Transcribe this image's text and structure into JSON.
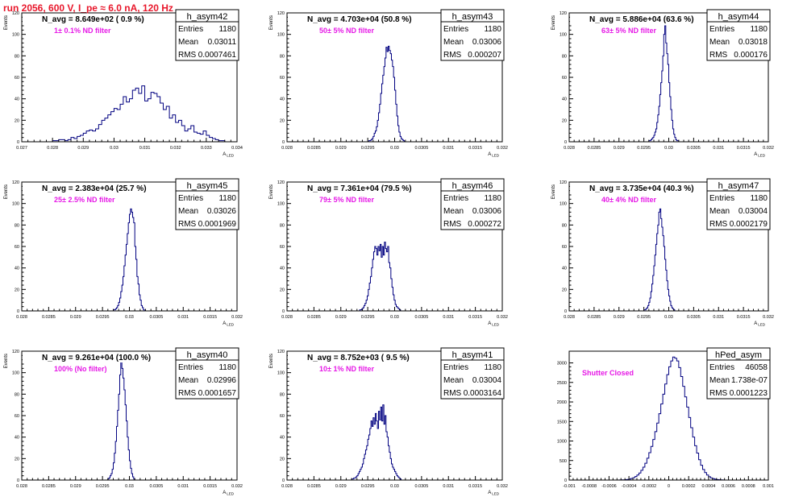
{
  "run_title": "run 2056,   600 V, I_pe ≈ 6.0 nA, 120 Hz",
  "colors": {
    "histogram": "#000080",
    "annotation": "#e619e6",
    "title": "#e8162a",
    "frame": "#000000"
  },
  "chart_data": [
    {
      "type": "histogram",
      "name": "h_asym42",
      "stats": {
        "Entries": "1180",
        "Mean": "0.03011",
        "RMS": "0.0007461"
      },
      "navg": "N_avg = 8.649e+02 ( 0.9 %)",
      "annotation": "1± 0.1% ND filter",
      "ylabel": "Events",
      "xlabel": "A_LED",
      "xlim": [
        0.027,
        0.034
      ],
      "ylim": [
        0,
        120
      ],
      "xticks": [
        "0.027",
        "0.028",
        "0.029",
        "0.03",
        "0.031",
        "0.032",
        "0.033",
        "0.034"
      ],
      "yticks": [
        "0",
        "20",
        "40",
        "60",
        "80",
        "100",
        "120"
      ],
      "bins": {
        "start": 0.028,
        "width": 0.0001,
        "counts": [
          1,
          1,
          2,
          2,
          1,
          2,
          4,
          3,
          5,
          6,
          8,
          10,
          11,
          10,
          12,
          16,
          20,
          22,
          25,
          28,
          31,
          30,
          35,
          42,
          37,
          40,
          48,
          50,
          45,
          52,
          38,
          40,
          46,
          45,
          42,
          36,
          30,
          33,
          22,
          25,
          18,
          20,
          15,
          10,
          12,
          15,
          9,
          8,
          7,
          10,
          6,
          4,
          3,
          2,
          1,
          1
        ]
      }
    },
    {
      "type": "histogram",
      "name": "h_asym43",
      "stats": {
        "Entries": "1180",
        "Mean": "0.03006",
        "RMS": "0.000207"
      },
      "navg": "N_avg = 4.703e+04 (50.8 %)",
      "annotation": "50± 5% ND filter",
      "ylabel": "Events",
      "xlabel": "A_LED",
      "xlim": [
        0.028,
        0.032
      ],
      "ylim": [
        0,
        120
      ],
      "xticks": [
        "0.028",
        "0.0285",
        "0.029",
        "0.0295",
        "0.03",
        "0.0305",
        "0.031",
        "0.0315",
        "0.032"
      ],
      "yticks": [
        "0",
        "20",
        "40",
        "60",
        "80",
        "100",
        "120"
      ],
      "bins": {
        "start": 0.0295,
        "width": 2e-05,
        "counts": [
          0,
          1,
          1,
          2,
          3,
          5,
          8,
          10,
          14,
          20,
          27,
          35,
          45,
          54,
          62,
          70,
          78,
          88,
          84,
          89,
          85,
          82,
          76,
          70,
          60,
          48,
          35,
          24,
          15,
          9,
          5,
          3,
          2,
          1
        ]
      }
    },
    {
      "type": "histogram",
      "name": "h_asym44",
      "stats": {
        "Entries": "1180",
        "Mean": "0.03018",
        "RMS": "0.000176"
      },
      "navg": "N_avg = 5.886e+04 (63.6 %)",
      "annotation": "63± 5% ND filter",
      "ylabel": "Events",
      "xlabel": "A_LED",
      "xlim": [
        0.028,
        0.032
      ],
      "ylim": [
        0,
        120
      ],
      "xticks": [
        "0.028",
        "0.0285",
        "0.029",
        "0.0295",
        "0.03",
        "0.0305",
        "0.031",
        "0.0315",
        "0.032"
      ],
      "yticks": [
        "0",
        "20",
        "40",
        "60",
        "80",
        "100",
        "120"
      ],
      "bins": {
        "start": 0.0296,
        "width": 2e-05,
        "counts": [
          1,
          1,
          2,
          3,
          4,
          6,
          9,
          12,
          18,
          25,
          33,
          44,
          55,
          66,
          80,
          100,
          108,
          92,
          82,
          72,
          55,
          42,
          30,
          20,
          12,
          7,
          4,
          2,
          1,
          1
        ]
      }
    },
    {
      "type": "histogram",
      "name": "h_asym45",
      "stats": {
        "Entries": "1180",
        "Mean": "0.03026",
        "RMS": "0.0001969"
      },
      "navg": "N_avg = 2.383e+04 (25.7 %)",
      "annotation": "25± 2.5% ND filter",
      "ylabel": "Events",
      "xlabel": "A_LED",
      "xlim": [
        0.028,
        0.032
      ],
      "ylim": [
        0,
        120
      ],
      "xticks": [
        "0.028",
        "0.0285",
        "0.029",
        "0.0295",
        "0.03",
        "0.0305",
        "0.031",
        "0.0315",
        "0.032"
      ],
      "yticks": [
        "0",
        "20",
        "40",
        "60",
        "80",
        "100",
        "120"
      ],
      "bins": {
        "start": 0.0297,
        "width": 2e-05,
        "counts": [
          1,
          1,
          2,
          3,
          5,
          8,
          12,
          18,
          24,
          32,
          42,
          52,
          62,
          72,
          82,
          90,
          95,
          92,
          87,
          82,
          60,
          48,
          32,
          25,
          15,
          10,
          5,
          3,
          1
        ]
      }
    },
    {
      "type": "histogram",
      "name": "h_asym46",
      "stats": {
        "Entries": "1180",
        "Mean": "0.03006",
        "RMS": "0.000272"
      },
      "navg": "N_avg = 7.361e+04 (79.5 %)",
      "annotation": "79± 5% ND filter",
      "ylabel": "Events",
      "xlabel": "A_LED",
      "xlim": [
        0.028,
        0.032
      ],
      "ylim": [
        0,
        120
      ],
      "xticks": [
        "0.028",
        "0.0285",
        "0.029",
        "0.0295",
        "0.03",
        "0.0305",
        "0.031",
        "0.0315",
        "0.032"
      ],
      "yticks": [
        "0",
        "20",
        "40",
        "60",
        "80",
        "100",
        "120"
      ],
      "bins": {
        "start": 0.02935,
        "width": 2e-05,
        "counts": [
          1,
          1,
          2,
          3,
          5,
          7,
          10,
          14,
          20,
          26,
          32,
          40,
          48,
          55,
          60,
          58,
          52,
          60,
          56,
          62,
          50,
          60,
          52,
          64,
          58,
          55,
          60,
          45,
          40,
          30,
          22,
          15,
          10,
          6,
          4,
          3,
          2,
          1
        ]
      }
    },
    {
      "type": "histogram",
      "name": "h_asym47",
      "stats": {
        "Entries": "1180",
        "Mean": "0.03004",
        "RMS": "0.0002179"
      },
      "navg": "N_avg = 3.735e+04 (40.3 %)",
      "annotation": "40± 4% ND filter",
      "ylabel": "Events",
      "xlabel": "A_LED",
      "xlim": [
        0.028,
        0.032
      ],
      "ylim": [
        0,
        120
      ],
      "xticks": [
        "0.028",
        "0.0285",
        "0.029",
        "0.0295",
        "0.03",
        "0.0305",
        "0.031",
        "0.0315",
        "0.032"
      ],
      "yticks": [
        "0",
        "20",
        "40",
        "60",
        "80",
        "100",
        "120"
      ],
      "bins": {
        "start": 0.0295,
        "width": 2e-05,
        "counts": [
          1,
          1,
          2,
          3,
          5,
          8,
          12,
          18,
          25,
          33,
          42,
          52,
          62,
          72,
          80,
          92,
          95,
          86,
          78,
          70,
          60,
          48,
          38,
          28,
          20,
          14,
          9,
          5,
          3,
          2,
          1
        ]
      }
    },
    {
      "type": "histogram",
      "name": "h_asym40",
      "stats": {
        "Entries": "1180",
        "Mean": "0.02996",
        "RMS": "0.0001657"
      },
      "navg": "N_avg = 9.261e+04 (100.0 %)",
      "annotation": "100% (No filter)",
      "ylabel": "Events",
      "xlabel": "A_LED",
      "xlim": [
        0.028,
        0.032
      ],
      "ylim": [
        0,
        120
      ],
      "xticks": [
        "0.028",
        "0.0285",
        "0.029",
        "0.0295",
        "0.03",
        "0.0305",
        "0.031",
        "0.0315",
        "0.032"
      ],
      "yticks": [
        "0",
        "20",
        "40",
        "60",
        "80",
        "100",
        "120"
      ],
      "bins": {
        "start": 0.0296,
        "width": 2e-05,
        "counts": [
          1,
          2,
          4,
          6,
          10,
          16,
          25,
          36,
          50,
          65,
          80,
          98,
          110,
          104,
          95,
          84,
          70,
          55,
          40,
          28,
          18,
          11,
          6,
          3,
          1
        ]
      }
    },
    {
      "type": "histogram",
      "name": "h_asym41",
      "stats": {
        "Entries": "1180",
        "Mean": "0.03004",
        "RMS": "0.0003164"
      },
      "navg": "N_avg = 8.752e+03 ( 9.5 %)",
      "annotation": "10± 1% ND filter",
      "ylabel": "Events",
      "xlabel": "A_LED",
      "xlim": [
        0.028,
        0.032
      ],
      "ylim": [
        0,
        120
      ],
      "xticks": [
        "0.028",
        "0.0285",
        "0.029",
        "0.0295",
        "0.03",
        "0.0305",
        "0.031",
        "0.0315",
        "0.032"
      ],
      "yticks": [
        "0",
        "20",
        "40",
        "60",
        "80",
        "100",
        "120"
      ],
      "bins": {
        "start": 0.0292,
        "width": 2e-05,
        "counts": [
          1,
          1,
          2,
          2,
          3,
          4,
          6,
          8,
          10,
          12,
          15,
          20,
          24,
          28,
          32,
          38,
          42,
          48,
          55,
          50,
          58,
          52,
          62,
          55,
          48,
          64,
          56,
          68,
          55,
          70,
          52,
          60,
          45,
          40,
          32,
          26,
          20,
          15,
          12,
          10,
          8,
          6,
          4,
          3,
          2,
          1
        ]
      }
    },
    {
      "type": "histogram",
      "name": "hPed_asym",
      "stats": {
        "Entries": "46058",
        "Mean": "1.738e-07",
        "RMS": "0.0001223"
      },
      "annotation": "Shutter Closed",
      "xlim": [
        -0.001,
        0.001
      ],
      "ylim": [
        0,
        3300
      ],
      "xticks": [
        "-0.001",
        "-0.0008",
        "-0.0006",
        "-0.0004",
        "-0.0002",
        "0",
        "0.0002",
        "0.0004",
        "0.0006",
        "0.0008",
        "0.001"
      ],
      "yticks": [
        "0",
        "500",
        "1000",
        "1500",
        "2000",
        "2500",
        "3000"
      ],
      "bins": {
        "start": -0.0005,
        "width": 2e-05,
        "counts": [
          2,
          4,
          6,
          10,
          16,
          25,
          40,
          60,
          90,
          130,
          180,
          250,
          330,
          430,
          560,
          700,
          860,
          1040,
          1240,
          1460,
          1700,
          1950,
          2200,
          2460,
          2700,
          2900,
          3050,
          3150,
          3120,
          3050,
          2880,
          2650,
          2400,
          2130,
          1870,
          1600,
          1340,
          1100,
          880,
          690,
          520,
          380,
          270,
          190,
          130,
          85,
          55,
          35,
          22,
          14,
          8,
          4,
          2
        ]
      }
    }
  ]
}
